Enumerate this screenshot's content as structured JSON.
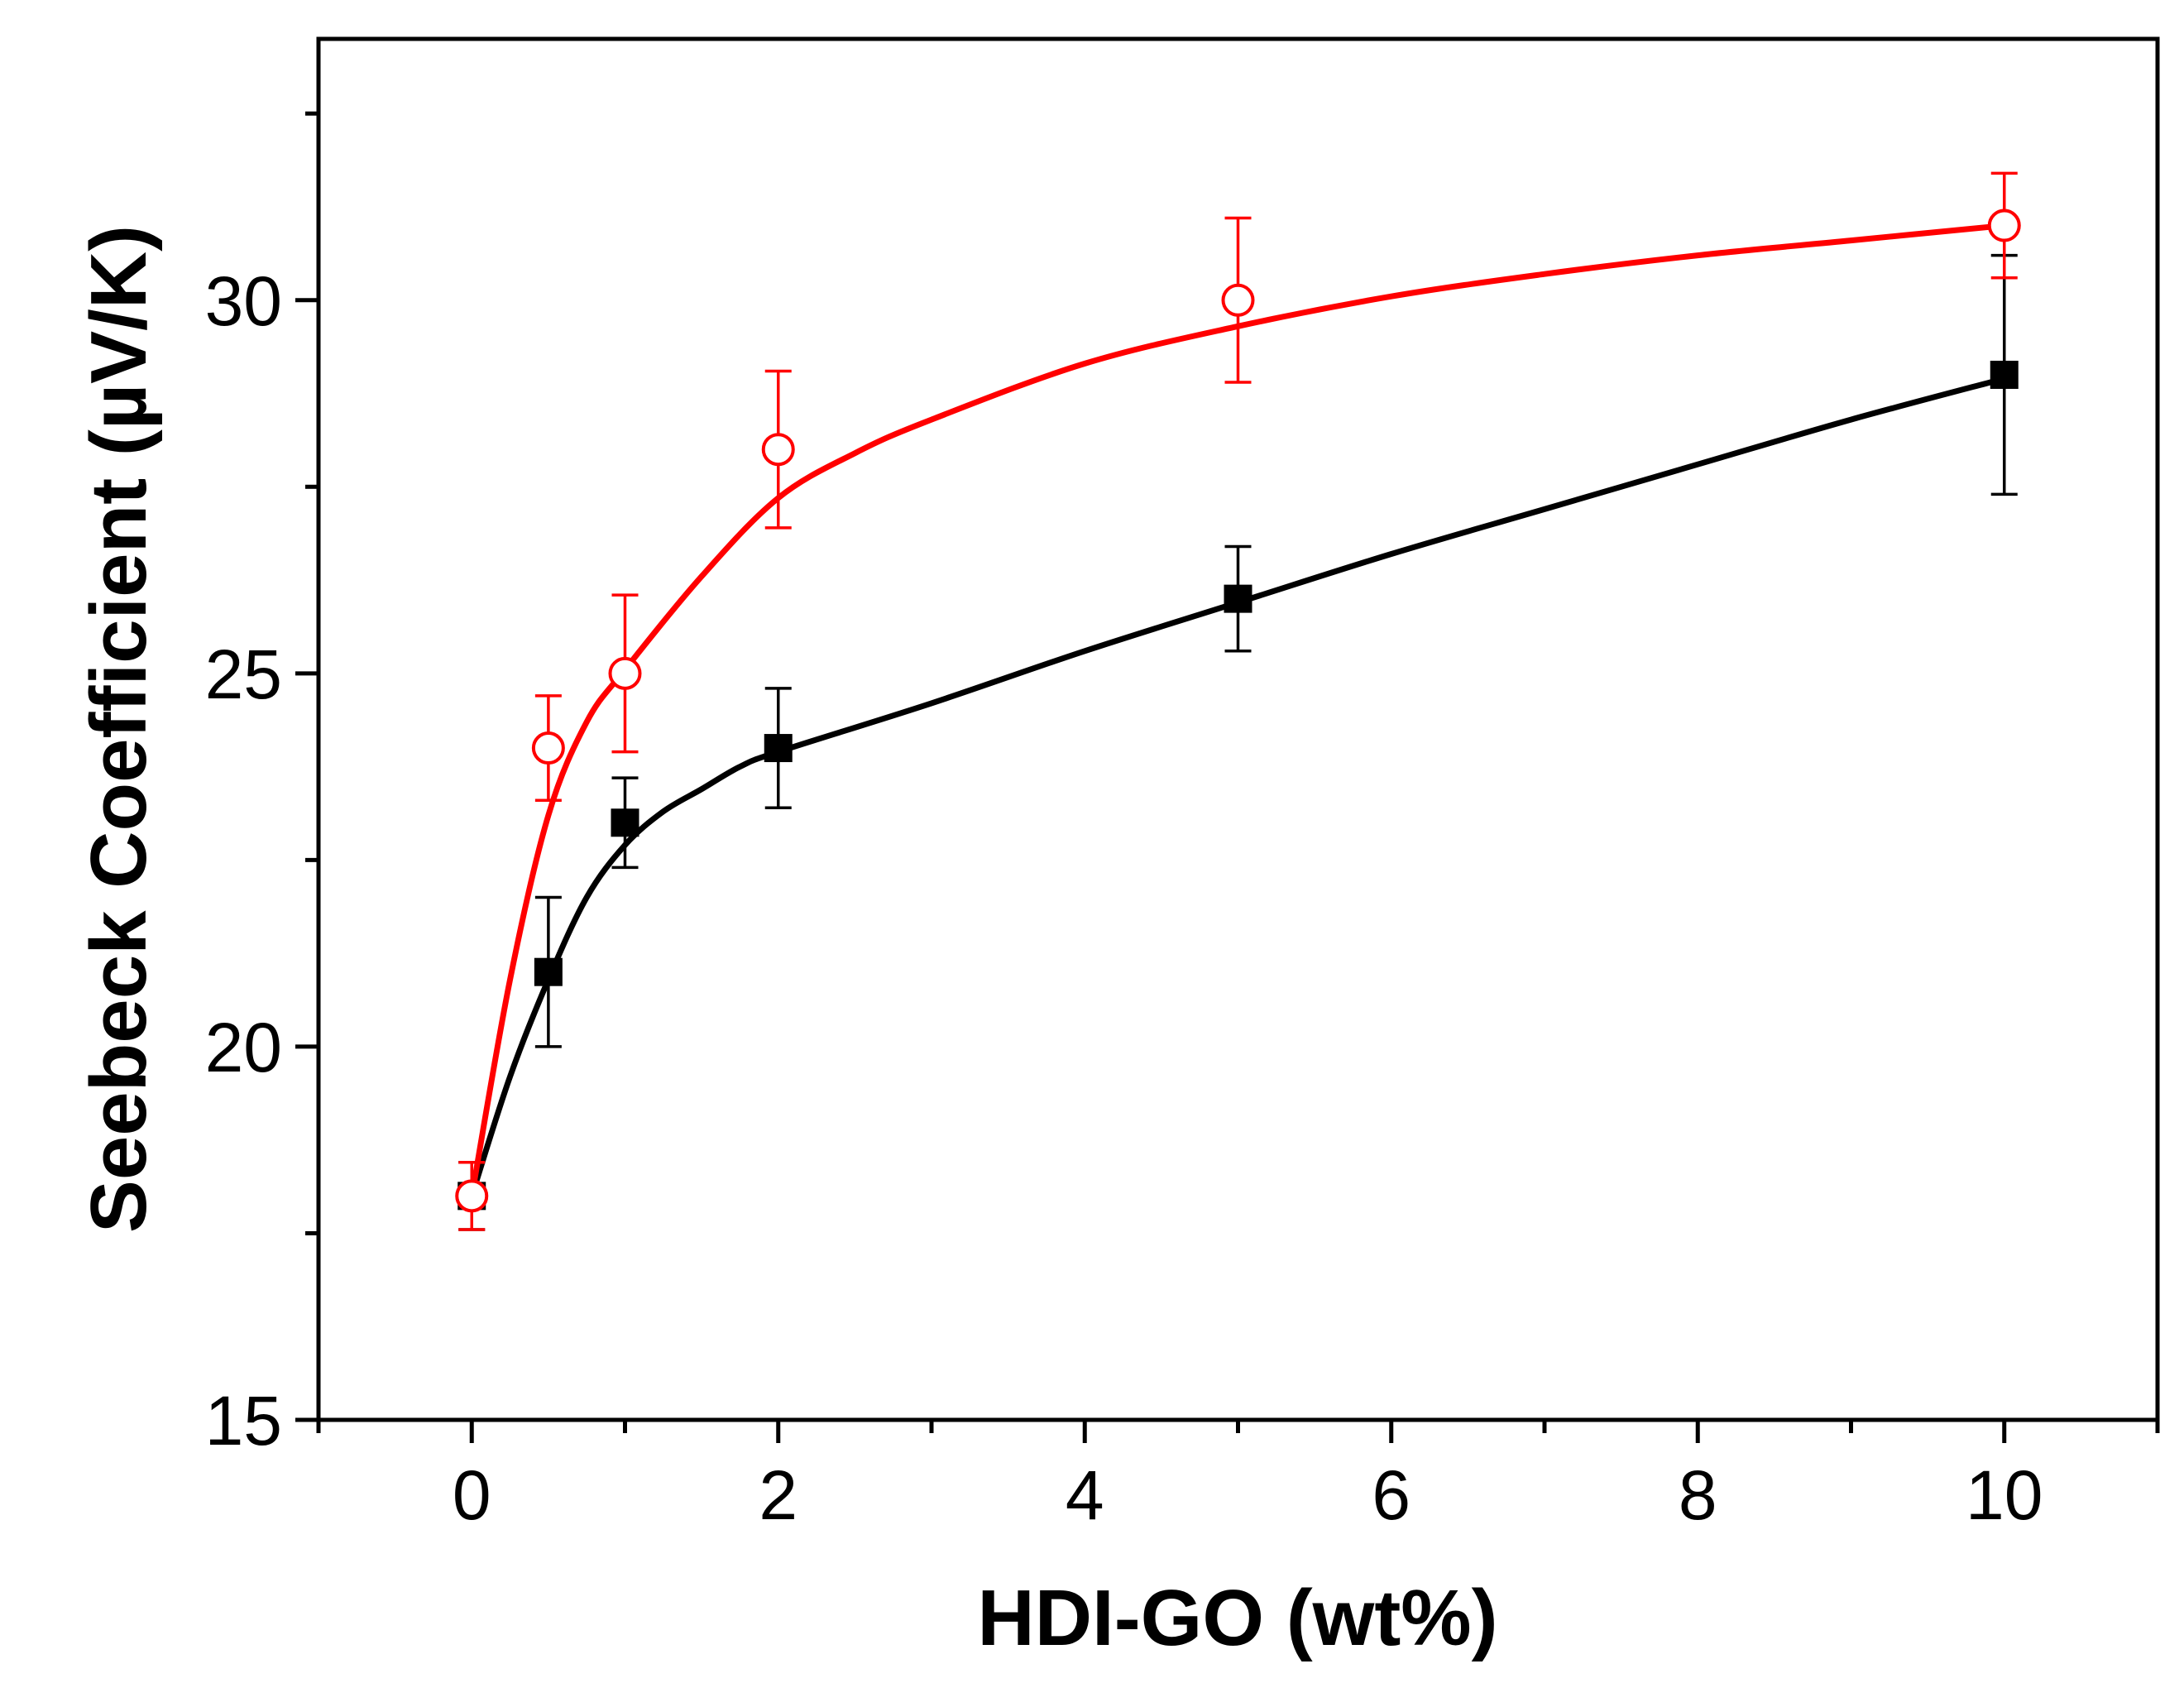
{
  "chart_data": {
    "type": "line",
    "title": "",
    "xlabel": "HDI-GO (wt%)",
    "ylabel": "Seebeck Coefficient (µV/K)",
    "xlim": [
      -1,
      11
    ],
    "ylim": [
      15,
      33.5
    ],
    "x_ticks": [
      0,
      2,
      4,
      6,
      8,
      10
    ],
    "x_tick_labels": [
      "0",
      "2",
      "4",
      "6",
      "8",
      "10"
    ],
    "x_minor_ticks": [
      -1,
      1,
      3,
      5,
      7,
      9,
      11
    ],
    "y_ticks": [
      15,
      20,
      25,
      30
    ],
    "y_tick_labels": [
      "15",
      "20",
      "25",
      "30"
    ],
    "y_minor_ticks": [
      17.5,
      22.5,
      27.5,
      32.5
    ],
    "grid": false,
    "legend": "none",
    "series": [
      {
        "name": "black filled squares",
        "color": "#000000",
        "marker": "filled-square",
        "x": [
          0,
          0.5,
          1,
          2,
          5,
          10
        ],
        "values": [
          18,
          21,
          23,
          24,
          26,
          29
        ],
        "error": [
          0.45,
          1.0,
          0.6,
          0.8,
          0.7,
          1.6
        ],
        "fit_curve": [
          [
            0,
            18
          ],
          [
            0.25,
            19.6
          ],
          [
            0.5,
            20.9
          ],
          [
            0.75,
            22.0
          ],
          [
            1,
            22.7
          ],
          [
            1.25,
            23.15
          ],
          [
            1.5,
            23.45
          ],
          [
            1.75,
            23.75
          ],
          [
            2,
            23.95
          ],
          [
            3,
            24.6
          ],
          [
            4,
            25.3
          ],
          [
            5,
            25.95
          ],
          [
            6,
            26.6
          ],
          [
            7,
            27.2
          ],
          [
            8,
            27.8
          ],
          [
            9,
            28.4
          ],
          [
            10,
            28.95
          ]
        ]
      },
      {
        "name": "red open circles",
        "color": "#ff0000",
        "marker": "open-circle",
        "x": [
          0,
          0.5,
          1,
          2,
          5,
          10
        ],
        "values": [
          18,
          24,
          25,
          28,
          30,
          31
        ],
        "error": [
          0.45,
          0.7,
          1.05,
          1.05,
          1.1,
          0.7
        ],
        "fit_curve": [
          [
            0,
            18
          ],
          [
            0.25,
            20.9
          ],
          [
            0.5,
            23.1
          ],
          [
            0.75,
            24.35
          ],
          [
            1,
            25.05
          ],
          [
            1.5,
            26.3
          ],
          [
            2,
            27.35
          ],
          [
            2.5,
            27.95
          ],
          [
            3,
            28.4
          ],
          [
            4,
            29.15
          ],
          [
            5,
            29.65
          ],
          [
            6,
            30.05
          ],
          [
            7,
            30.35
          ],
          [
            8,
            30.6
          ],
          [
            9,
            30.8
          ],
          [
            10,
            31.0
          ]
        ]
      }
    ]
  }
}
